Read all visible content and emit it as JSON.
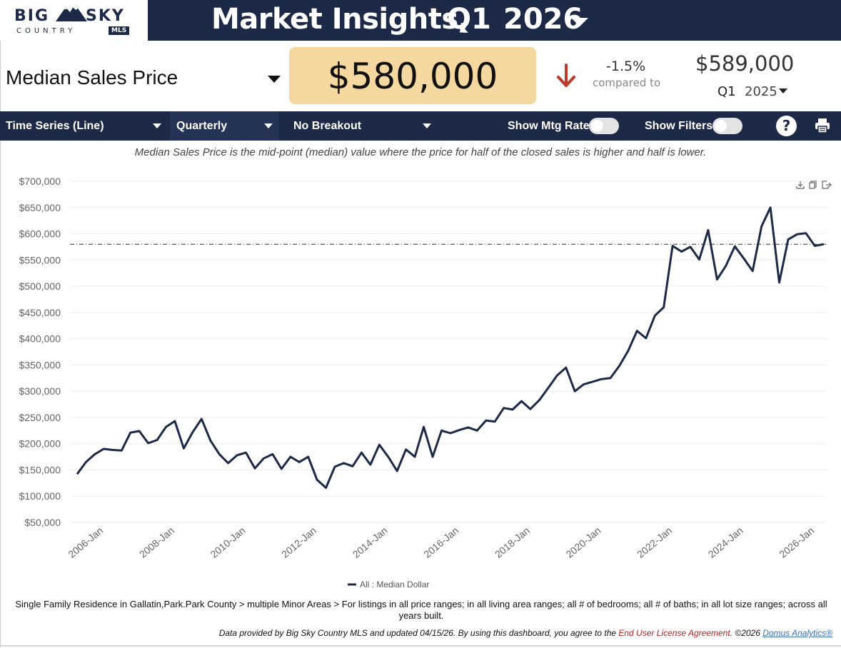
{
  "header": {
    "logo_big": "BIG",
    "logo_sky": "SKY",
    "logo_country": "COUNTRY",
    "logo_mls": "MLS",
    "title": "Market Insights,",
    "quarter": "Q1",
    "year": "2026"
  },
  "kpi": {
    "metric": "Median Sales Price",
    "value": "$580,000",
    "change": "-1.5%",
    "compared_label": "compared to",
    "compare_value": "$589,000",
    "compare_quarter": "Q1",
    "compare_year": "2025"
  },
  "toolbar": {
    "view": "Time Series (Line)",
    "period": "Quarterly",
    "breakout": "No Breakout",
    "mtg_rate_label": "Show Mtg Rate:",
    "filters_label": "Show Filters:",
    "help": "?"
  },
  "description": "Median Sales Price is the mid-point (median) value where the price for half of the closed sales is higher and half is lower.",
  "chart_data": {
    "type": "line",
    "title": "",
    "xlabel": "",
    "ylabel": "",
    "ylim": [
      50000,
      700000
    ],
    "y_ticks": [
      "$700,000",
      "$650,000",
      "$600,000",
      "$550,000",
      "$500,000",
      "$450,000",
      "$400,000",
      "$350,000",
      "$300,000",
      "$250,000",
      "$200,000",
      "$150,000",
      "$100,000",
      "$50,000"
    ],
    "x_ticks": [
      "2006-Jan",
      "2008-Jan",
      "2010-Jan",
      "2012-Jan",
      "2014-Jan",
      "2016-Jan",
      "2018-Jan",
      "2020-Jan",
      "2022-Jan",
      "2024-Jan",
      "2026-Jan"
    ],
    "reference_line": 580000,
    "legend": "All : Median Dollar",
    "legend_position": "bottom",
    "series": [
      {
        "name": "All : Median Dollar",
        "color": "#1c2a48",
        "x_start": "2005-Q2",
        "values": [
          142000,
          165000,
          180000,
          190000,
          188000,
          187000,
          221000,
          224000,
          201000,
          207000,
          232000,
          243000,
          191000,
          222000,
          247000,
          206000,
          180000,
          163000,
          178000,
          183000,
          153000,
          172000,
          180000,
          152000,
          175000,
          165000,
          175000,
          131000,
          116000,
          156000,
          163000,
          157000,
          183000,
          160000,
          198000,
          175000,
          148000,
          189000,
          175000,
          232000,
          175000,
          225000,
          220000,
          226000,
          231000,
          225000,
          244000,
          242000,
          268000,
          265000,
          281000,
          266000,
          283000,
          306000,
          330000,
          345000,
          300000,
          313000,
          318000,
          323000,
          325000,
          348000,
          377000,
          415000,
          401000,
          444000,
          460000,
          577000,
          566000,
          575000,
          551000,
          607000,
          513000,
          539000,
          576000,
          553000,
          529000,
          614000,
          650000,
          507000,
          589000,
          599000,
          601000,
          577000,
          580000
        ]
      }
    ]
  },
  "footer": {
    "filter_text": "Single Family Residence in Gallatin,Park.Park County > multiple Minor Areas > For listings in all price ranges; in all living area ranges; all # of bedrooms; all # of baths; in all lot size ranges; across all years built.",
    "credit_pre": "Data provided by Big Sky Country MLS and updated 04/15/26.  By using this dashboard, you agree to the ",
    "credit_link": "End User License Agreement",
    "credit_mid": ".  ©2026 ",
    "credit_brand": "Domus Analytics®"
  },
  "colors": {
    "navy": "#1c2a48",
    "kpi_bg": "#f4d8a0",
    "down_arrow": "#c0392b"
  },
  "icons": [
    "mountain-logo-icon",
    "chevron-down-icon",
    "arrow-down-icon",
    "help-icon",
    "print-icon",
    "download-icon",
    "copy-icon",
    "export-icon"
  ]
}
